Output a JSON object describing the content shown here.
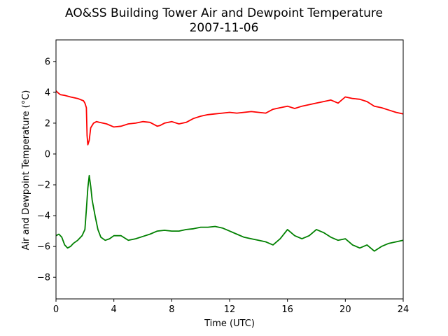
{
  "chart_data": {
    "type": "line",
    "title": "AO&SS Building Tower Air and Dewpoint Temperature",
    "subtitle": "2007-11-06",
    "xlabel": "Time (UTC)",
    "ylabel": "Air and Dewpoint Temperature (°C)",
    "xlim": [
      0,
      24
    ],
    "ylim": [
      -9.4,
      7.4
    ],
    "xticks": [
      0,
      4,
      8,
      12,
      16,
      20,
      24
    ],
    "yticks": [
      -8,
      -6,
      -4,
      -2,
      0,
      2,
      4,
      6
    ],
    "grid": false,
    "legend": "none",
    "series": [
      {
        "color": "#ff0000",
        "x": [
          0,
          0.1,
          0.3,
          0.6,
          1.0,
          1.5,
          1.9,
          2.0,
          2.1,
          2.15,
          2.2,
          2.3,
          2.4,
          2.6,
          2.8,
          3.0,
          3.5,
          4.0,
          4.5,
          5.0,
          5.5,
          6.0,
          6.5,
          7.0,
          7.2,
          7.5,
          8.0,
          8.5,
          9.0,
          9.5,
          10.0,
          10.5,
          11.0,
          11.5,
          12.0,
          12.5,
          13.0,
          13.5,
          14.0,
          14.5,
          15.0,
          15.5,
          16.0,
          16.5,
          17.0,
          17.5,
          18.0,
          18.5,
          19.0,
          19.5,
          20.0,
          20.5,
          21.0,
          21.5,
          22.0,
          22.5,
          23.0,
          23.5,
          24.0
        ],
        "y": [
          4.1,
          4.0,
          3.85,
          3.8,
          3.7,
          3.6,
          3.45,
          3.3,
          3.0,
          1.2,
          0.6,
          0.9,
          1.7,
          2.0,
          2.1,
          2.05,
          1.95,
          1.75,
          1.8,
          1.95,
          2.0,
          2.1,
          2.05,
          1.8,
          1.85,
          2.0,
          2.1,
          1.95,
          2.05,
          2.3,
          2.45,
          2.55,
          2.6,
          2.65,
          2.7,
          2.65,
          2.7,
          2.75,
          2.7,
          2.65,
          2.9,
          3.0,
          3.1,
          2.95,
          3.1,
          3.2,
          3.3,
          3.4,
          3.5,
          3.3,
          3.7,
          3.6,
          3.55,
          3.4,
          3.1,
          3.0,
          2.85,
          2.7,
          2.6
        ]
      },
      {
        "color": "#008000",
        "x": [
          0,
          0.2,
          0.4,
          0.6,
          0.8,
          1.0,
          1.2,
          1.5,
          1.8,
          2.0,
          2.1,
          2.2,
          2.3,
          2.4,
          2.5,
          2.7,
          2.9,
          3.1,
          3.4,
          3.7,
          4.0,
          4.5,
          5.0,
          5.5,
          6.0,
          6.5,
          7.0,
          7.5,
          8.0,
          8.5,
          9.0,
          9.5,
          10.0,
          10.5,
          11.0,
          11.5,
          12.0,
          12.5,
          13.0,
          13.5,
          14.0,
          14.5,
          15.0,
          15.5,
          16.0,
          16.5,
          17.0,
          17.5,
          18.0,
          18.5,
          19.0,
          19.5,
          20.0,
          20.5,
          21.0,
          21.5,
          22.0,
          22.5,
          23.0,
          23.5,
          24.0
        ],
        "y": [
          -5.3,
          -5.2,
          -5.4,
          -5.9,
          -6.1,
          -6.0,
          -5.8,
          -5.6,
          -5.3,
          -4.9,
          -3.6,
          -2.2,
          -1.4,
          -2.1,
          -3.0,
          -4.0,
          -4.9,
          -5.4,
          -5.6,
          -5.5,
          -5.3,
          -5.3,
          -5.6,
          -5.5,
          -5.35,
          -5.2,
          -5.0,
          -4.95,
          -5.0,
          -5.0,
          -4.9,
          -4.85,
          -4.75,
          -4.75,
          -4.7,
          -4.8,
          -5.0,
          -5.2,
          -5.4,
          -5.5,
          -5.6,
          -5.7,
          -5.9,
          -5.5,
          -4.9,
          -5.3,
          -5.5,
          -5.3,
          -4.9,
          -5.1,
          -5.4,
          -5.6,
          -5.5,
          -5.9,
          -6.1,
          -5.9,
          -6.3,
          -6.0,
          -5.8,
          -5.7,
          -5.6
        ]
      }
    ]
  }
}
